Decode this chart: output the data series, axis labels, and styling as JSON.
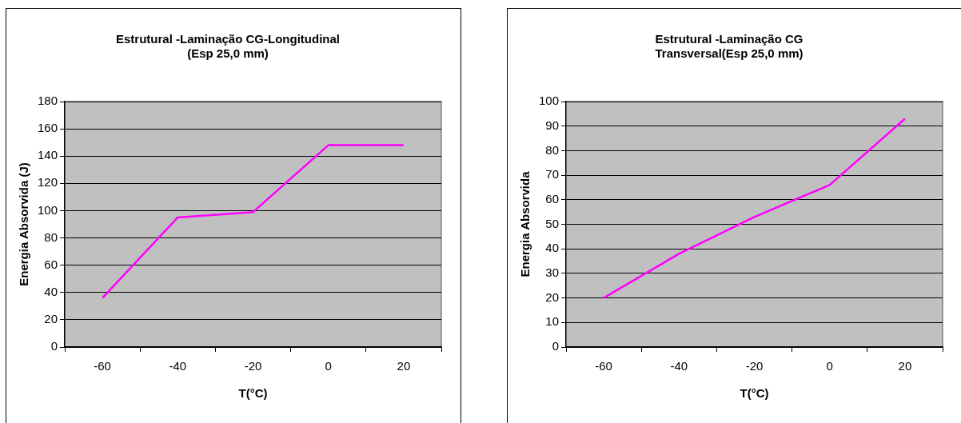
{
  "chart_data": [
    {
      "type": "line",
      "title": "Estrutural -Laminação CG-Longitudinal\n(Esp 25,0 mm)",
      "xlabel": "T(°C)",
      "ylabel": "Energia Absorvida (J)",
      "categories": [
        "-60",
        "-40",
        "-20",
        "0",
        "20"
      ],
      "series": [
        {
          "color": "#ff00ff",
          "values": [
            36,
            95,
            99,
            148,
            148
          ]
        }
      ],
      "ylim": [
        0,
        180
      ],
      "yticks": [
        0,
        20,
        40,
        60,
        80,
        100,
        120,
        140,
        160,
        180
      ],
      "grid": "y",
      "legend": false,
      "marker": "none",
      "line_style": "solid"
    },
    {
      "type": "line",
      "title": "Estrutural -Laminação CG\nTransversal(Esp 25,0 mm)",
      "xlabel": "T(°C)",
      "ylabel": "Energia Absorvida",
      "categories": [
        "-60",
        "-40",
        "-20",
        "0",
        "20"
      ],
      "series": [
        {
          "color": "#ff00ff",
          "values": [
            20,
            38,
            53,
            66,
            93
          ]
        }
      ],
      "ylim": [
        0,
        100
      ],
      "yticks": [
        0,
        10,
        20,
        30,
        40,
        50,
        60,
        70,
        80,
        90,
        100
      ],
      "grid": "y",
      "legend": false,
      "marker": "none",
      "line_style": "solid"
    }
  ]
}
